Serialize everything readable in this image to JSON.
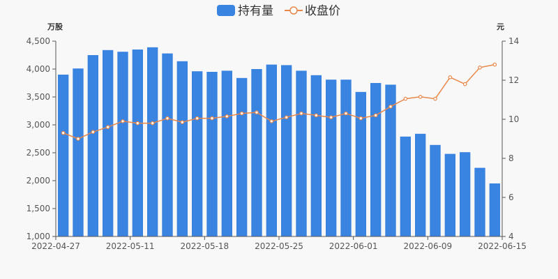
{
  "chart_data": {
    "type": "bar",
    "legend": {
      "position": "top-center",
      "items": [
        {
          "name": "持有量",
          "symbol": "bar",
          "color": "#3a84e1"
        },
        {
          "name": "收盘价",
          "symbol": "line",
          "color": "#e8874a"
        }
      ]
    },
    "y_left": {
      "unit": "万股",
      "min": 1000,
      "max": 4500,
      "ticks": [
        1000,
        1500,
        2000,
        2500,
        3000,
        3500,
        4000,
        4500
      ]
    },
    "y_right": {
      "unit": "元",
      "min": 4,
      "max": 14,
      "ticks": [
        4,
        6,
        8,
        10,
        12,
        14
      ]
    },
    "x_ticks": [
      {
        "index": 0,
        "label": "2022-04-27"
      },
      {
        "index": 5,
        "label": "2022-05-11"
      },
      {
        "index": 10,
        "label": "2022-05-18"
      },
      {
        "index": 15,
        "label": "2022-05-25"
      },
      {
        "index": 20,
        "label": "2022-06-01"
      },
      {
        "index": 25,
        "label": "2022-06-09"
      },
      {
        "index": 29,
        "label": "2022-06-15"
      }
    ],
    "grid": false,
    "series": [
      {
        "name": "持有量",
        "type": "bar",
        "axis": "left",
        "color": "#3a84e1",
        "values": [
          3900,
          4010,
          4250,
          4340,
          4310,
          4350,
          4390,
          4280,
          4140,
          3960,
          3950,
          3970,
          3840,
          4000,
          4080,
          4070,
          3970,
          3890,
          3810,
          3810,
          3590,
          3750,
          3720,
          2790,
          2840,
          2640,
          2480,
          2510,
          2230,
          1950
        ]
      },
      {
        "name": "收盘价",
        "type": "line",
        "axis": "right",
        "color": "#e8874a",
        "values": [
          9.3,
          9.0,
          9.35,
          9.6,
          9.9,
          9.8,
          9.8,
          10.05,
          9.85,
          10.05,
          10.05,
          10.15,
          10.3,
          10.35,
          9.9,
          10.1,
          10.3,
          10.2,
          10.1,
          10.3,
          10.05,
          10.2,
          10.65,
          11.05,
          11.15,
          11.05,
          12.15,
          11.8,
          12.65,
          12.8
        ]
      }
    ]
  }
}
